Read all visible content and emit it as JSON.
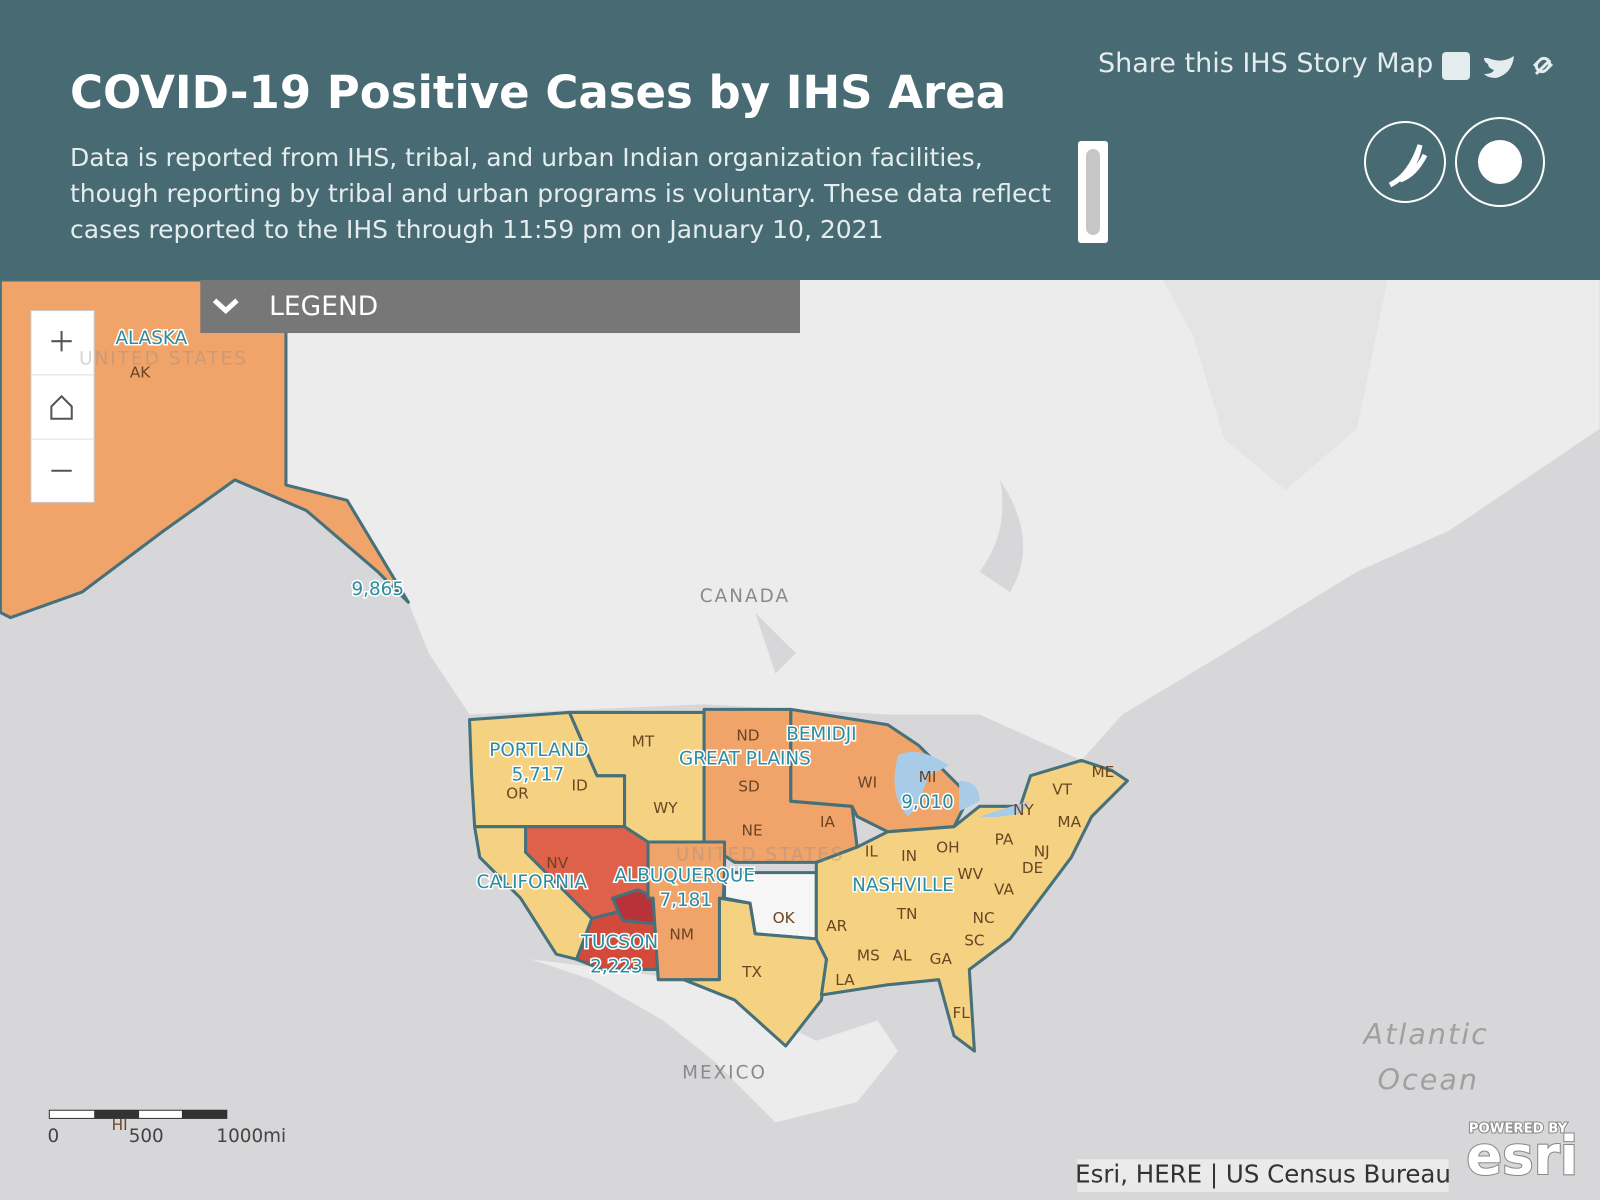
{
  "header": {
    "title": "COVID-19 Positive Cases by IHS Area",
    "description": "Data is reported from IHS, tribal, and urban Indian organization facilities, though reporting by tribal and urban programs is voluntary. These data reflect cases reported to the IHS through 11:59 pm on January 10, 2021",
    "share_label": "Share this IHS Story Map"
  },
  "legend": {
    "label": "LEGEND"
  },
  "map": {
    "area_labels": [
      {
        "name": "ALASKA",
        "cases": "9,865"
      },
      {
        "name": "PORTLAND",
        "cases": "5,717"
      },
      {
        "name": "BEMIDJI",
        "cases": "9,010"
      },
      {
        "name": "ALBUQUERQUE",
        "cases": "7,181"
      },
      {
        "name": "TUCSON",
        "cases": "2,223"
      },
      {
        "name": "GREAT PLAINS"
      },
      {
        "name": "CALIFORNIA"
      },
      {
        "name": "NASHVILLE"
      }
    ],
    "state_labels": [
      "AK",
      "OR",
      "ID",
      "MT",
      "WY",
      "ND",
      "SD",
      "NE",
      "IA",
      "WI",
      "MI",
      "NV",
      "NM",
      "OK",
      "TX",
      "AR",
      "LA",
      "MS",
      "AL",
      "GA",
      "FL",
      "TN",
      "NC",
      "SC",
      "VA",
      "WV",
      "IL",
      "IN",
      "OH",
      "PA",
      "NY",
      "VT",
      "ME",
      "MA",
      "NJ",
      "DE",
      "HI"
    ],
    "place_labels": [
      "CANADA",
      "MEXICO",
      "UNITED STATES",
      "UNITED STATES",
      "Atlantic",
      "Ocean"
    ],
    "scale_labels": [
      "0",
      "500",
      "1000mi"
    ],
    "attribution": "Esri, HERE | US Census Bureau",
    "logo": {
      "tagline": "POWERED BY",
      "name": "esri"
    }
  }
}
